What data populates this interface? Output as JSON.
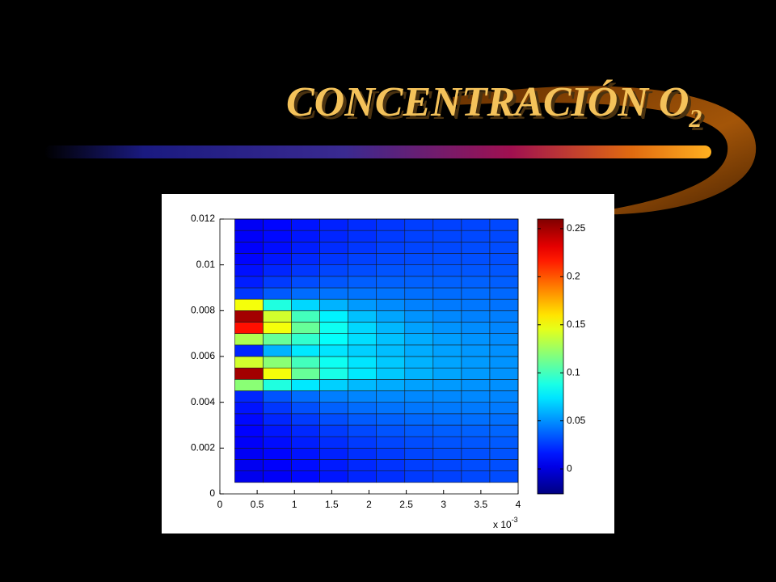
{
  "chart_data": {
    "type": "heatmap",
    "title": "CONCENTRACIÓN O",
    "title_subscript": "2",
    "x_multiplier": "x 10",
    "x_multiplier_exponent": "-3",
    "xlim": [
      0,
      0.004
    ],
    "xticks": [
      0,
      {
        "value": 0.0005,
        "label": "0.5"
      },
      {
        "value": 0.001,
        "label": "1"
      },
      {
        "value": 0.0015,
        "label": "1.5"
      },
      {
        "value": 0.002,
        "label": "2"
      },
      {
        "value": 0.0025,
        "label": "2.5"
      },
      {
        "value": 0.003,
        "label": "3"
      },
      {
        "value": 0.0035,
        "label": "3.5"
      },
      {
        "value": 0.004,
        "label": "4"
      }
    ],
    "ylim": [
      0,
      0.012
    ],
    "yticks": [
      0,
      0.002,
      0.004,
      0.006,
      0.008,
      0.01,
      0.012
    ],
    "x_edges": [
      0.0002,
      0.00058,
      0.00096,
      0.00134,
      0.00172,
      0.0021,
      0.00248,
      0.00286,
      0.00324,
      0.00362,
      0.004
    ],
    "y_edges": [
      0.0005,
      0.001,
      0.0015,
      0.002,
      0.0025,
      0.003,
      0.0035,
      0.004,
      0.0045,
      0.005,
      0.0055,
      0.006,
      0.0065,
      0.007,
      0.0075,
      0.008,
      0.0085,
      0.009,
      0.0095,
      0.01,
      0.0105,
      0.011,
      0.0115,
      0.012
    ],
    "z": [
      [
        0.005,
        0.008,
        0.012,
        0.016,
        0.02,
        0.023,
        0.026,
        0.028,
        0.03,
        0.031
      ],
      [
        0.006,
        0.009,
        0.013,
        0.017,
        0.021,
        0.024,
        0.027,
        0.029,
        0.031,
        0.032
      ],
      [
        0.007,
        0.011,
        0.015,
        0.019,
        0.023,
        0.026,
        0.029,
        0.031,
        0.032,
        0.033
      ],
      [
        0.008,
        0.013,
        0.018,
        0.022,
        0.026,
        0.029,
        0.031,
        0.033,
        0.034,
        0.035
      ],
      [
        0.01,
        0.016,
        0.021,
        0.026,
        0.03,
        0.033,
        0.035,
        0.036,
        0.037,
        0.038
      ],
      [
        0.012,
        0.02,
        0.026,
        0.031,
        0.035,
        0.037,
        0.039,
        0.04,
        0.041,
        0.041
      ],
      [
        0.015,
        0.025,
        0.032,
        0.037,
        0.04,
        0.042,
        0.043,
        0.044,
        0.044,
        0.044
      ],
      [
        0.02,
        0.033,
        0.04,
        0.045,
        0.047,
        0.048,
        0.048,
        0.048,
        0.048,
        0.047
      ],
      [
        0.12,
        0.09,
        0.075,
        0.068,
        0.062,
        0.058,
        0.055,
        0.053,
        0.051,
        0.05
      ],
      [
        0.25,
        0.15,
        0.11,
        0.088,
        0.075,
        0.066,
        0.06,
        0.056,
        0.053,
        0.051
      ],
      [
        0.14,
        0.12,
        0.1,
        0.085,
        0.074,
        0.066,
        0.06,
        0.056,
        0.053,
        0.051
      ],
      [
        0.02,
        0.06,
        0.075,
        0.074,
        0.068,
        0.063,
        0.058,
        0.055,
        0.052,
        0.05
      ],
      [
        0.13,
        0.11,
        0.095,
        0.082,
        0.072,
        0.064,
        0.058,
        0.054,
        0.051,
        0.049
      ],
      [
        0.22,
        0.15,
        0.11,
        0.085,
        0.07,
        0.061,
        0.055,
        0.051,
        0.049,
        0.047
      ],
      [
        0.25,
        0.14,
        0.1,
        0.078,
        0.064,
        0.056,
        0.051,
        0.048,
        0.046,
        0.045
      ],
      [
        0.15,
        0.09,
        0.07,
        0.06,
        0.053,
        0.049,
        0.046,
        0.044,
        0.043,
        0.042
      ],
      [
        0.025,
        0.035,
        0.04,
        0.042,
        0.042,
        0.042,
        0.041,
        0.04,
        0.04,
        0.039
      ],
      [
        0.018,
        0.026,
        0.031,
        0.034,
        0.036,
        0.037,
        0.037,
        0.037,
        0.037,
        0.036
      ],
      [
        0.014,
        0.02,
        0.025,
        0.029,
        0.031,
        0.033,
        0.034,
        0.034,
        0.034,
        0.034
      ],
      [
        0.011,
        0.016,
        0.021,
        0.025,
        0.028,
        0.03,
        0.031,
        0.032,
        0.032,
        0.032
      ],
      [
        0.009,
        0.013,
        0.018,
        0.022,
        0.025,
        0.028,
        0.029,
        0.03,
        0.031,
        0.031
      ],
      [
        0.008,
        0.012,
        0.016,
        0.02,
        0.023,
        0.026,
        0.028,
        0.029,
        0.03,
        0.03
      ],
      [
        0.007,
        0.011,
        0.015,
        0.019,
        0.022,
        0.025,
        0.027,
        0.028,
        0.029,
        0.03
      ]
    ],
    "colormap": "jet",
    "clim": [
      -0.026,
      0.26
    ],
    "cticks": [
      0,
      0.05,
      0.1,
      0.15,
      0.2,
      0.25
    ]
  }
}
